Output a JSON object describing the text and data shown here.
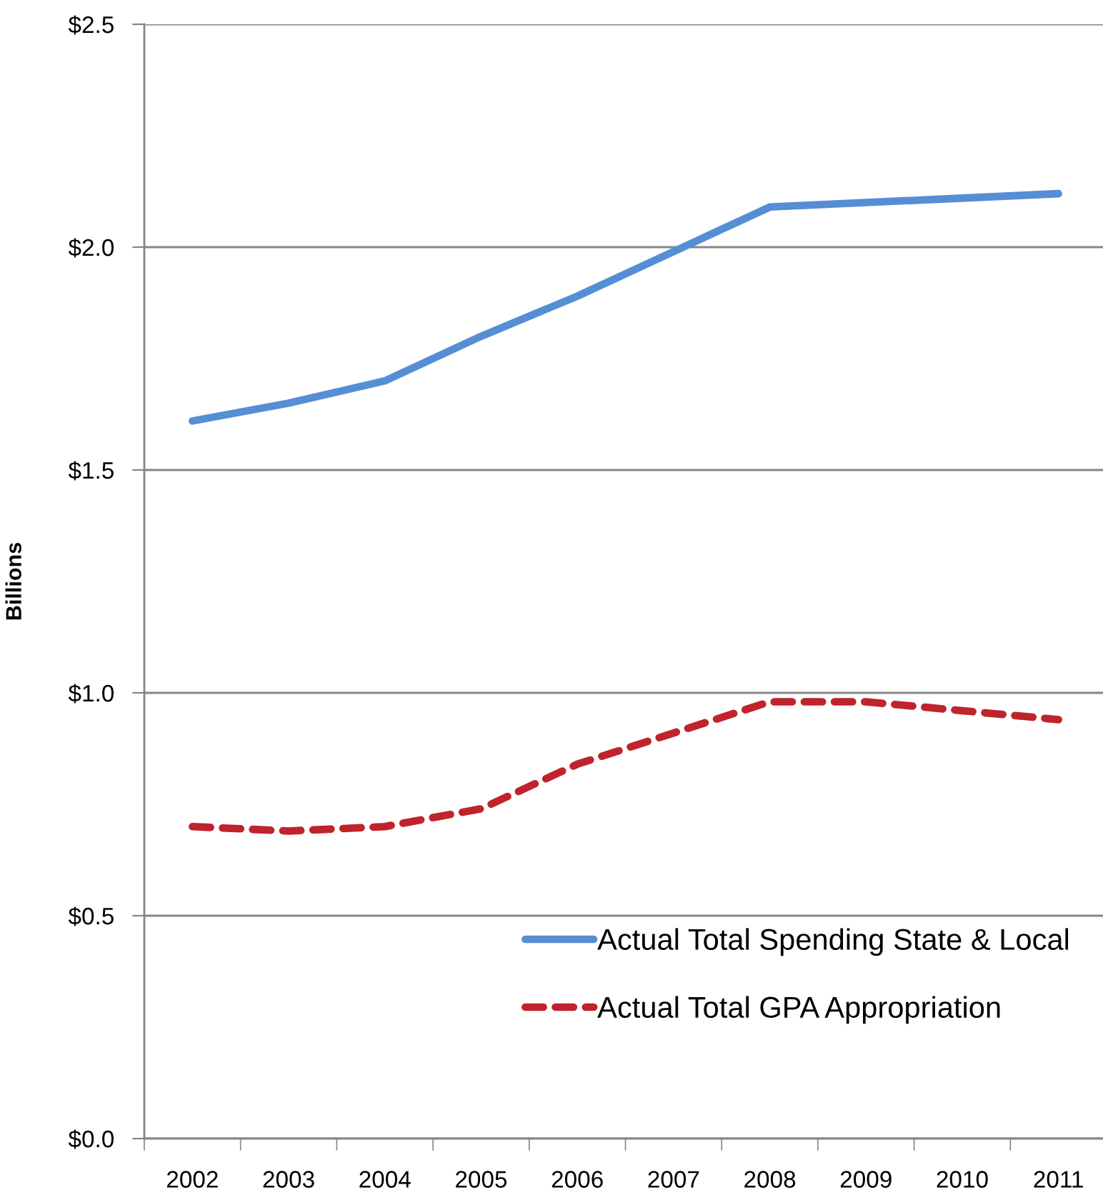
{
  "chart_data": {
    "type": "line",
    "ylabel": "Billions",
    "categories": [
      "2002",
      "2003",
      "2004",
      "2005",
      "2006",
      "2007",
      "2008",
      "2009",
      "2010",
      "2011"
    ],
    "series": [
      {
        "name": "Actual Total Spending State & Local",
        "color": "#558ed5",
        "line_style": "solid",
        "values": [
          1.61,
          1.65,
          1.7,
          1.8,
          1.89,
          1.99,
          2.09,
          2.1,
          2.11,
          2.12
        ]
      },
      {
        "name": "Actual Total GPA Appropriation",
        "color": "#c0232c",
        "line_style": "dashed",
        "values": [
          0.7,
          0.69,
          0.7,
          0.74,
          0.84,
          0.91,
          0.98,
          0.98,
          0.96,
          0.94
        ]
      }
    ],
    "ylim": [
      0,
      2.5
    ],
    "yticks": [
      {
        "value": 0,
        "label": "$0.0"
      },
      {
        "value": 0.5,
        "label": "$0.5"
      },
      {
        "value": 1.0,
        "label": "$1.0"
      },
      {
        "value": 1.5,
        "label": "$1.5"
      },
      {
        "value": 2.0,
        "label": "$2.0"
      },
      {
        "value": 2.5,
        "label": "$2.5"
      }
    ],
    "grid": "y",
    "legend": "bottom right",
    "marker": "none"
  }
}
